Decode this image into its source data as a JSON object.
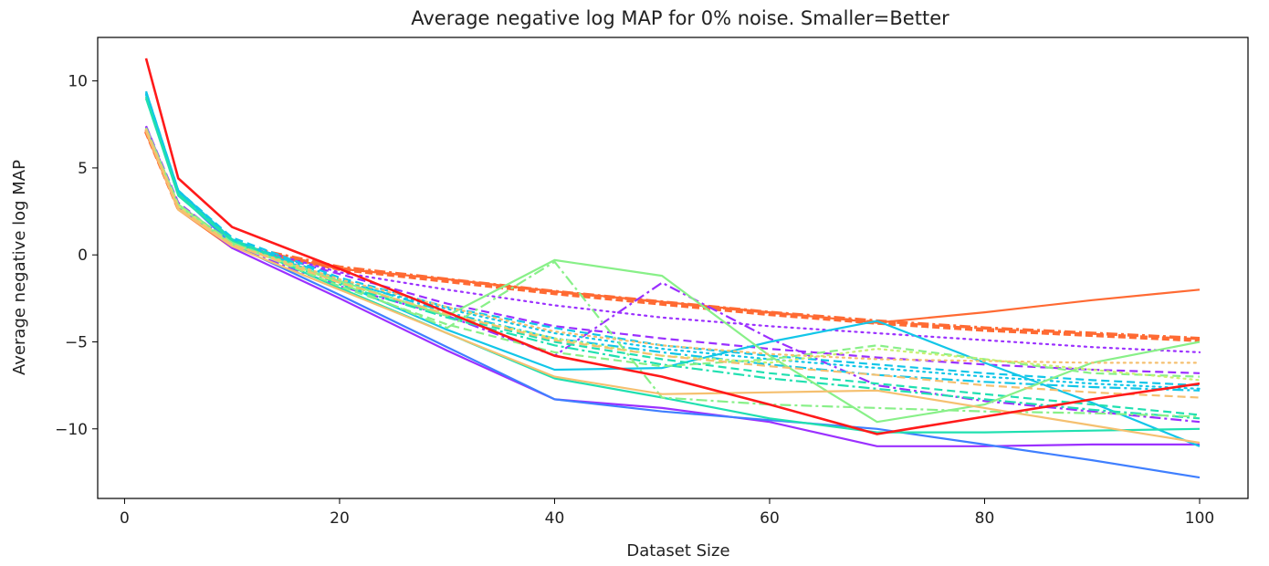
{
  "chart_data": {
    "type": "line",
    "title": "Average negative log MAP for 0% noise. Smaller=Better",
    "xlabel": "Dataset Size",
    "ylabel": "Average negative log MAP",
    "xlim": [
      -2.5,
      104.5
    ],
    "ylim": [
      -14.0,
      12.5
    ],
    "xticks": [
      0,
      20,
      40,
      60,
      80,
      100
    ],
    "yticks": [
      -10,
      -5,
      0,
      5,
      10
    ],
    "x": [
      2,
      5,
      10,
      20,
      30,
      40,
      50,
      60,
      70,
      80,
      90,
      100
    ],
    "grid": false,
    "legend": "none",
    "series": [
      {
        "color": "#ff6a33",
        "dash": "solid",
        "width": 2.2,
        "values": [
          7.0,
          2.6,
          0.4,
          -0.8,
          -1.4,
          -2.1,
          -2.7,
          -3.3,
          -3.9,
          -3.3,
          -2.6,
          -2.0
        ]
      },
      {
        "color": "#ff6a33",
        "dash": "8,4",
        "width": 4.5,
        "values": [
          7.1,
          2.7,
          0.5,
          -0.8,
          -1.5,
          -2.2,
          -2.8,
          -3.4,
          -3.9,
          -4.3,
          -4.6,
          -4.9
        ]
      },
      {
        "color": "#ff6a33",
        "dash": "12,4,3,4",
        "width": 3.5,
        "values": [
          7.2,
          2.8,
          0.6,
          -0.7,
          -1.4,
          -2.1,
          -2.7,
          -3.3,
          -3.8,
          -4.2,
          -4.5,
          -4.8
        ]
      },
      {
        "color": "#9b30ff",
        "dash": "2,5",
        "width": 2.2,
        "values": [
          7.3,
          2.9,
          0.7,
          -1.0,
          -2.0,
          -2.9,
          -3.6,
          -4.1,
          -4.5,
          -4.9,
          -5.3,
          -5.6
        ]
      },
      {
        "color": "#9b30ff",
        "dash": "9,5",
        "width": 2.2,
        "values": [
          7.4,
          3.0,
          0.6,
          -1.1,
          -2.8,
          -4.1,
          -4.8,
          -5.4,
          -5.9,
          -6.3,
          -6.6,
          -6.8
        ]
      },
      {
        "color": "#9b30ff",
        "dash": "12,4,3,4",
        "width": 2.2,
        "values": [
          7.2,
          2.8,
          0.5,
          -1.8,
          -3.5,
          -5.8,
          -1.6,
          -4.8,
          -7.5,
          -8.4,
          -9.0,
          -9.6
        ]
      },
      {
        "color": "#9b30ff",
        "dash": "solid",
        "width": 2.2,
        "values": [
          7.4,
          2.8,
          0.4,
          -2.5,
          -5.5,
          -8.3,
          -8.8,
          -9.6,
          -11.0,
          -11.0,
          -10.9,
          -10.9
        ]
      },
      {
        "color": "#3f7fff",
        "dash": "solid",
        "width": 2.2,
        "values": [
          9.3,
          3.5,
          0.6,
          -2.3,
          -5.3,
          -8.3,
          -9.0,
          -9.5,
          -10.0,
          -10.9,
          -11.8,
          -12.8
        ]
      },
      {
        "color": "#12c6e8",
        "dash": "solid",
        "width": 2.2,
        "values": [
          9.4,
          3.7,
          0.9,
          -1.6,
          -4.3,
          -6.6,
          -6.5,
          -5.0,
          -3.8,
          -6.2,
          -8.5,
          -11.0
        ]
      },
      {
        "color": "#12c6e8",
        "dash": "9,5",
        "width": 2.2,
        "values": [
          9.4,
          3.7,
          1.0,
          -1.3,
          -3.0,
          -4.2,
          -5.2,
          -5.8,
          -6.3,
          -6.8,
          -7.2,
          -7.5
        ]
      },
      {
        "color": "#12c6e8",
        "dash": "12,4,3,4",
        "width": 2.2,
        "values": [
          9.3,
          3.6,
          0.9,
          -1.4,
          -3.3,
          -4.8,
          -5.6,
          -6.3,
          -6.9,
          -7.3,
          -7.6,
          -7.8
        ]
      },
      {
        "color": "#12c6e8",
        "dash": "2,5",
        "width": 2.2,
        "values": [
          9.2,
          3.6,
          0.8,
          -1.5,
          -3.1,
          -4.5,
          -5.4,
          -6.0,
          -6.5,
          -7.0,
          -7.4,
          -7.7
        ]
      },
      {
        "color": "#20e0b0",
        "dash": "solid",
        "width": 2.2,
        "values": [
          9.0,
          3.4,
          0.8,
          -1.9,
          -4.5,
          -7.1,
          -8.2,
          -9.4,
          -10.2,
          -10.2,
          -10.1,
          -10.0
        ]
      },
      {
        "color": "#20e0b0",
        "dash": "9,5",
        "width": 2.2,
        "values": [
          9.1,
          3.5,
          0.9,
          -1.6,
          -3.5,
          -5.0,
          -6.0,
          -6.8,
          -7.4,
          -8.0,
          -8.6,
          -9.2
        ]
      },
      {
        "color": "#20e0b0",
        "dash": "12,4,3,4",
        "width": 2.2,
        "values": [
          9.0,
          3.5,
          0.8,
          -1.7,
          -3.6,
          -5.2,
          -6.3,
          -7.1,
          -7.7,
          -8.3,
          -8.9,
          -9.4
        ]
      },
      {
        "color": "#88f088",
        "dash": "solid",
        "width": 2.2,
        "values": [
          7.2,
          2.8,
          0.6,
          -1.5,
          -3.5,
          -0.3,
          -1.2,
          -5.8,
          -9.6,
          -8.6,
          -6.2,
          -5.0
        ]
      },
      {
        "color": "#88f088",
        "dash": "12,4,3,4",
        "width": 2.2,
        "values": [
          7.3,
          2.9,
          0.7,
          -1.6,
          -4.2,
          -0.4,
          -8.2,
          -8.6,
          -8.8,
          -9.0,
          -9.1,
          -9.3
        ]
      },
      {
        "color": "#88f088",
        "dash": "9,5",
        "width": 2.2,
        "values": [
          7.3,
          2.9,
          0.7,
          -1.8,
          -4.0,
          -5.6,
          -6.4,
          -6.0,
          -5.2,
          -6.0,
          -6.8,
          -7.0
        ]
      },
      {
        "color": "#c8f070",
        "dash": "2,5",
        "width": 2.2,
        "values": [
          7.2,
          2.8,
          0.6,
          -1.6,
          -3.4,
          -4.8,
          -5.8,
          -6.2,
          -5.4,
          -6.0,
          -6.6,
          -7.2
        ]
      },
      {
        "color": "#f5c070",
        "dash": "solid",
        "width": 2.2,
        "values": [
          7.1,
          2.6,
          0.5,
          -2.0,
          -4.5,
          -7.0,
          -8.0,
          -7.9,
          -7.8,
          -8.8,
          -9.8,
          -10.8
        ]
      },
      {
        "color": "#f5c070",
        "dash": "9,5",
        "width": 2.2,
        "values": [
          7.2,
          2.7,
          0.6,
          -1.6,
          -3.4,
          -4.9,
          -5.8,
          -6.4,
          -6.9,
          -7.5,
          -7.9,
          -8.2
        ]
      },
      {
        "color": "#f5c070",
        "dash": "2,5",
        "width": 2.2,
        "values": [
          7.2,
          2.7,
          0.6,
          -1.4,
          -3.0,
          -4.4,
          -5.2,
          -5.7,
          -6.0,
          -6.1,
          -6.2,
          -6.2
        ]
      },
      {
        "color": "#ff1a1a",
        "dash": "solid",
        "width": 2.6,
        "values": [
          11.3,
          4.4,
          1.6,
          -0.8,
          -3.3,
          -5.8,
          -7.0,
          -8.6,
          -10.3,
          -9.3,
          -8.3,
          -7.4
        ]
      }
    ]
  }
}
